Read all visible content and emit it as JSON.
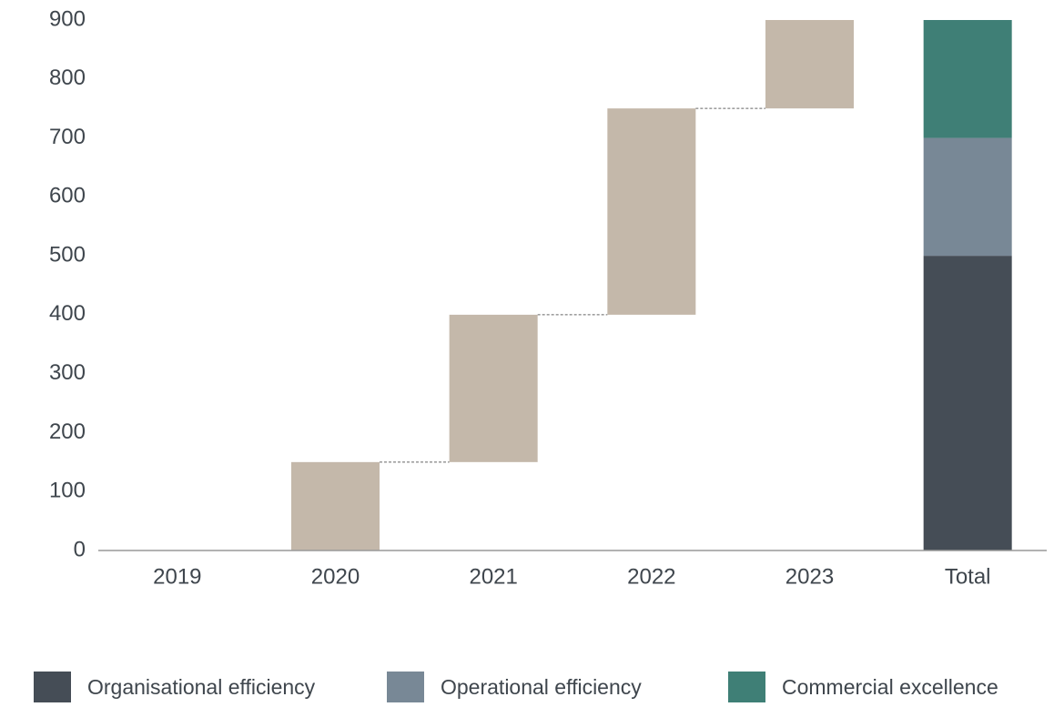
{
  "chart_data": {
    "type": "waterfall",
    "categories": [
      "2019",
      "2020",
      "2021",
      "2022",
      "2023",
      "Total"
    ],
    "values": [
      0,
      150,
      250,
      350,
      150,
      null
    ],
    "color": "#c4b8aa",
    "series": [
      {
        "name": "Organisational efficiency",
        "color": "#454d56",
        "values": [
          null,
          null,
          null,
          null,
          null,
          500
        ]
      },
      {
        "name": "Operational efficiency",
        "color": "#788896",
        "values": [
          null,
          null,
          null,
          null,
          null,
          200
        ]
      },
      {
        "name": "Commercial excellence",
        "color": "#3f7f76",
        "values": [
          null,
          null,
          null,
          null,
          null,
          200
        ]
      }
    ],
    "ylim": [
      0,
      900
    ],
    "yticks": [
      0,
      100,
      200,
      300,
      400,
      500,
      600,
      700,
      800,
      900
    ],
    "grid": false,
    "legend": "bottom"
  }
}
